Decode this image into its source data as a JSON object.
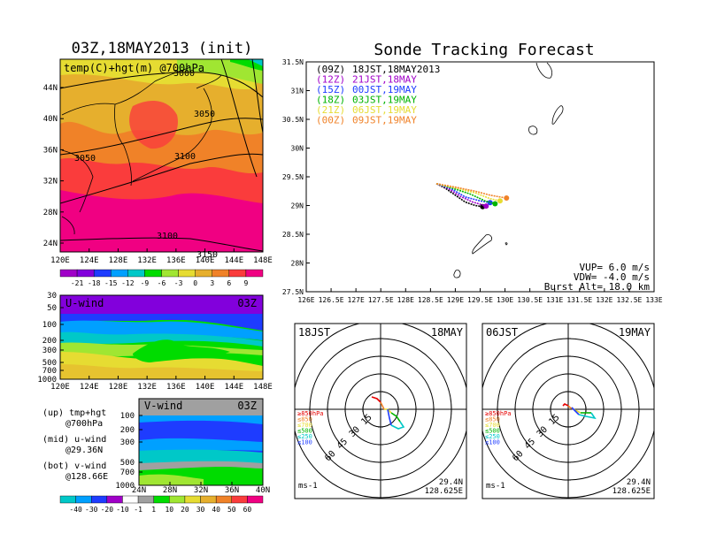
{
  "left_title": "03Z,18MAY2013 (init)",
  "right_title": "Sonde Tracking Forecast",
  "map_label": "temp(C)+hgt(m) @700hPa",
  "map_lon_ticks": [
    "120E",
    "124E",
    "128E",
    "132E",
    "136E",
    "140E",
    "144E",
    "148E"
  ],
  "map_lat_ticks": [
    "44N",
    "40N",
    "36N",
    "32N",
    "28N",
    "24N"
  ],
  "contour_labels": [
    "3000",
    "3050",
    "3050",
    "3100",
    "3100",
    "3150"
  ],
  "temp_colorbar": {
    "ticks": [
      "-21",
      "-18",
      "-15",
      "-12",
      "-9",
      "-6",
      "-3",
      "0",
      "3",
      "6",
      "9"
    ],
    "colors": [
      "#a000c8",
      "#8200dc",
      "#1e3cff",
      "#00a0ff",
      "#00c8c8",
      "#00dc00",
      "#a0e632",
      "#e6dc32",
      "#e6af2d",
      "#f08228",
      "#fa3c3c",
      "#f00082"
    ]
  },
  "uwind": {
    "label": "U-wind",
    "time": "03Z",
    "levels": [
      "30",
      "50",
      "100",
      "200",
      "300",
      "500",
      "700",
      "1000"
    ],
    "lon_ticks": [
      "120E",
      "124E",
      "128E",
      "132E",
      "136E",
      "140E",
      "144E",
      "148E"
    ]
  },
  "vwind": {
    "label": "V-wind",
    "time": "03Z",
    "levels": [
      "100",
      "200",
      "300",
      "500",
      "700",
      "1000"
    ],
    "lat_ticks": [
      "24N",
      "28N",
      "32N",
      "36N",
      "40N"
    ]
  },
  "notes": [
    {
      "a": "(up) tmp+hgt",
      "b": "@700hPa"
    },
    {
      "a": "(mid) u-wind",
      "b": "@29.36N"
    },
    {
      "a": "(bot) v-wind",
      "b": "@128.66E"
    }
  ],
  "wind_colorbar": {
    "ticks": [
      "-40",
      "-30",
      "-20",
      "-10",
      "-1",
      "1",
      "10",
      "20",
      "30",
      "40",
      "50",
      "60"
    ],
    "colors": [
      "#00c8c8",
      "#00a0ff",
      "#1e3cff",
      "#a000c8",
      "#ffffff",
      "#a0a0a0",
      "#00dc00",
      "#a0e632",
      "#e6dc32",
      "#e6af2d",
      "#f08228",
      "#fa3c3c",
      "#f00082"
    ]
  },
  "track_legend": [
    {
      "utc": "(09Z)",
      "jst": "18JST,18MAY2013",
      "color": "#000000"
    },
    {
      "utc": "(12Z)",
      "jst": "21JST,18MAY",
      "color": "#a000c8"
    },
    {
      "utc": "(15Z)",
      "jst": "00JST,19MAY",
      "color": "#1e3cff"
    },
    {
      "utc": "(18Z)",
      "jst": "03JST,19MAY",
      "color": "#00b400"
    },
    {
      "utc": "(21Z)",
      "jst": "06JST,19MAY",
      "color": "#e6dc32"
    },
    {
      "utc": "(00Z)",
      "jst": "09JST,19MAY",
      "color": "#f08228"
    }
  ],
  "track_info": {
    "vup": "VUP= 6.0 m/s",
    "vdw": "VDW= -4.0 m/s",
    "burst": "Burst Alt= 18.0 km"
  },
  "track_lon_ticks": [
    "126E",
    "126.5E",
    "127E",
    "127.5E",
    "128E",
    "128.5E",
    "129E",
    "129.5E",
    "130E",
    "130.5E",
    "131E",
    "131.5E",
    "132E",
    "132.5E",
    "133E"
  ],
  "track_lat_ticks": [
    "31.5N",
    "31N",
    "30.5N",
    "30N",
    "29.5N",
    "29N",
    "28.5N",
    "28N",
    "27.5N"
  ],
  "chart_data": [
    {
      "type": "line",
      "title": "Sonde Tracking Forecast",
      "xlim": [
        126,
        133
      ],
      "ylim": [
        27.5,
        31.5
      ],
      "series": [
        {
          "name": "(09Z) 18JST,18MAY2013",
          "x": [
            128.62,
            128.8,
            129.0,
            129.2,
            129.4,
            129.55
          ],
          "y": [
            29.38,
            29.3,
            29.18,
            29.06,
            29.0,
            28.98
          ]
        },
        {
          "name": "(12Z) 21JST,18MAY",
          "x": [
            128.62,
            128.85,
            129.1,
            129.35,
            129.55,
            129.62
          ],
          "y": [
            29.38,
            29.3,
            29.16,
            29.06,
            29.01,
            28.99
          ]
        },
        {
          "name": "(15Z) 00JST,19MAY",
          "x": [
            128.62,
            128.9,
            129.2,
            129.5,
            129.7
          ],
          "y": [
            29.38,
            29.3,
            29.15,
            29.08,
            29.05
          ]
        },
        {
          "name": "(18Z) 03JST,19MAY",
          "x": [
            128.62,
            128.95,
            129.3,
            129.6,
            129.8
          ],
          "y": [
            29.38,
            29.3,
            29.2,
            29.08,
            29.03
          ]
        },
        {
          "name": "(21Z) 06JST,19MAY",
          "x": [
            128.62,
            129.0,
            129.4,
            129.7,
            129.9
          ],
          "y": [
            29.38,
            29.31,
            29.22,
            29.12,
            29.08
          ]
        },
        {
          "name": "(00Z) 09JST,19MAY",
          "x": [
            128.62,
            129.0,
            129.4,
            129.7,
            130.03
          ],
          "y": [
            29.38,
            29.32,
            29.25,
            29.18,
            29.13
          ]
        }
      ]
    }
  ],
  "hodo_left": {
    "time": "18JST",
    "date": "18MAY",
    "ring_labels": [
      "15",
      "30",
      "45",
      "60"
    ],
    "lev_labels": [
      "≥850hPa",
      "≤850",
      "≤700",
      "≤500",
      "≤250",
      "≤100"
    ],
    "unit": "ms-1",
    "lat": "29.4N",
    "lon": "128.625E"
  },
  "hodo_right": {
    "time": "06JST",
    "date": "19MAY",
    "ring_labels": [
      "15",
      "30",
      "45",
      "60"
    ],
    "lev_labels": [
      "≥850hPa",
      "≤850",
      "≤700",
      "≤500",
      "≤250",
      "≤100"
    ],
    "unit": "ms-1",
    "lat": "29.4N",
    "lon": "128.625E"
  },
  "level_colors": [
    "#e60000",
    "#f08228",
    "#e6dc32",
    "#00b400",
    "#00c8c8",
    "#1e3cff"
  ]
}
